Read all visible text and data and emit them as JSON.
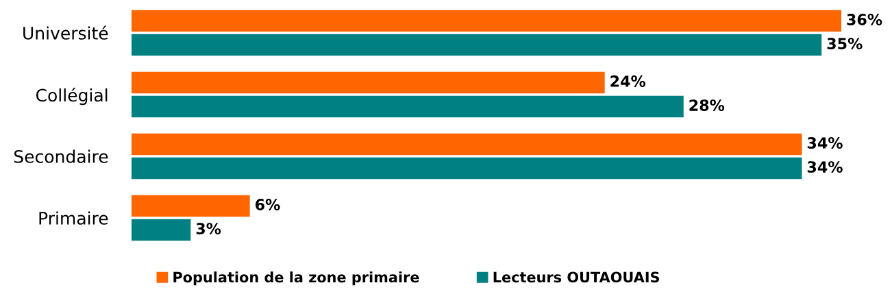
{
  "chart_data": {
    "type": "bar",
    "orientation": "horizontal",
    "categories": [
      "Université",
      "Collégial",
      "Secondaire",
      "Primaire"
    ],
    "series": [
      {
        "name": "Population de la zone primaire",
        "color": "#ff6600",
        "values": [
          36,
          24,
          34,
          6
        ],
        "value_labels": [
          "36%",
          "24%",
          "34%",
          "6%"
        ]
      },
      {
        "name": "Lecteurs OUTAOUAIS",
        "color": "#008080",
        "values": [
          35,
          28,
          34,
          3
        ],
        "value_labels": [
          "35%",
          "28%",
          "34%",
          "3%"
        ]
      }
    ],
    "xlim": [
      0,
      36
    ],
    "tick_labels": "y",
    "grid": false,
    "legend": "bottom"
  }
}
